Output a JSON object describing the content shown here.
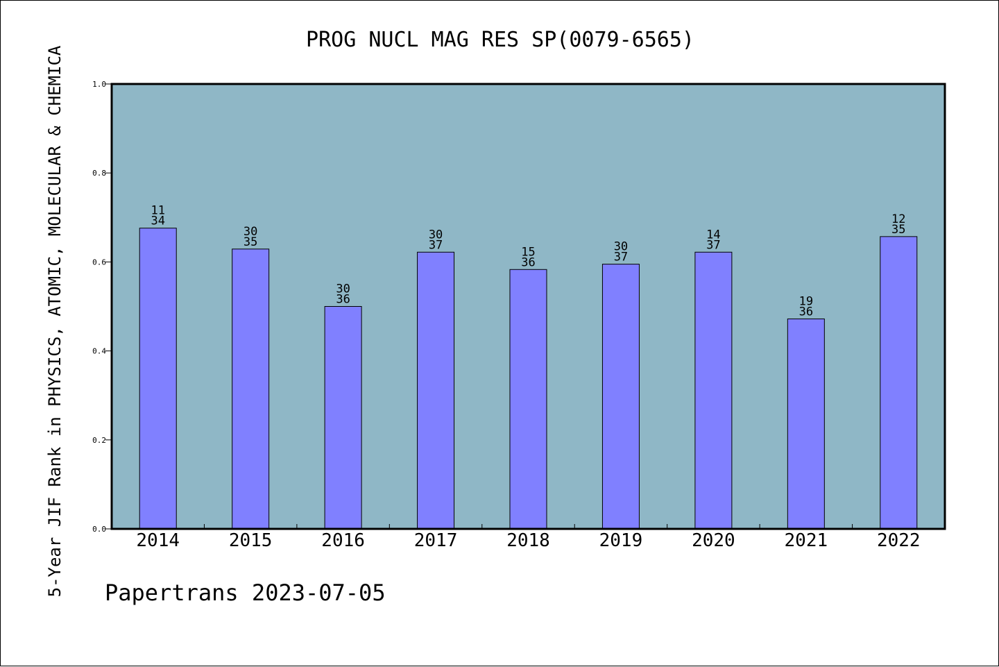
{
  "chart_data": {
    "type": "bar",
    "title": "PROG NUCL MAG RES SP(0079-6565)",
    "ylabel": "5-Year JIF Rank in PHYSICS, ATOMIC, MOLECULAR & CHEMICA",
    "xlabel": "",
    "ylim": [
      0,
      1.0
    ],
    "yticks": [
      "0.0",
      "0.2",
      "0.4",
      "0.6",
      "0.8",
      "1.0"
    ],
    "categories": [
      "2014",
      "2015",
      "2016",
      "2017",
      "2018",
      "2019",
      "2020",
      "2021",
      "2022"
    ],
    "values": [
      0.676,
      0.629,
      0.5,
      0.622,
      0.583,
      0.595,
      0.622,
      0.472,
      0.657
    ],
    "ranks": [
      "11",
      "30",
      "30",
      "30",
      "15",
      "30",
      "14",
      "19",
      "12"
    ],
    "totals": [
      "34",
      "35",
      "36",
      "37",
      "36",
      "37",
      "37",
      "36",
      "35"
    ],
    "grid": false,
    "colors": {
      "plot_background": "#8fb7c6",
      "bar": "#8080ff",
      "bar_edge": "#000000"
    }
  },
  "footer": "Papertrans 2023-07-05"
}
